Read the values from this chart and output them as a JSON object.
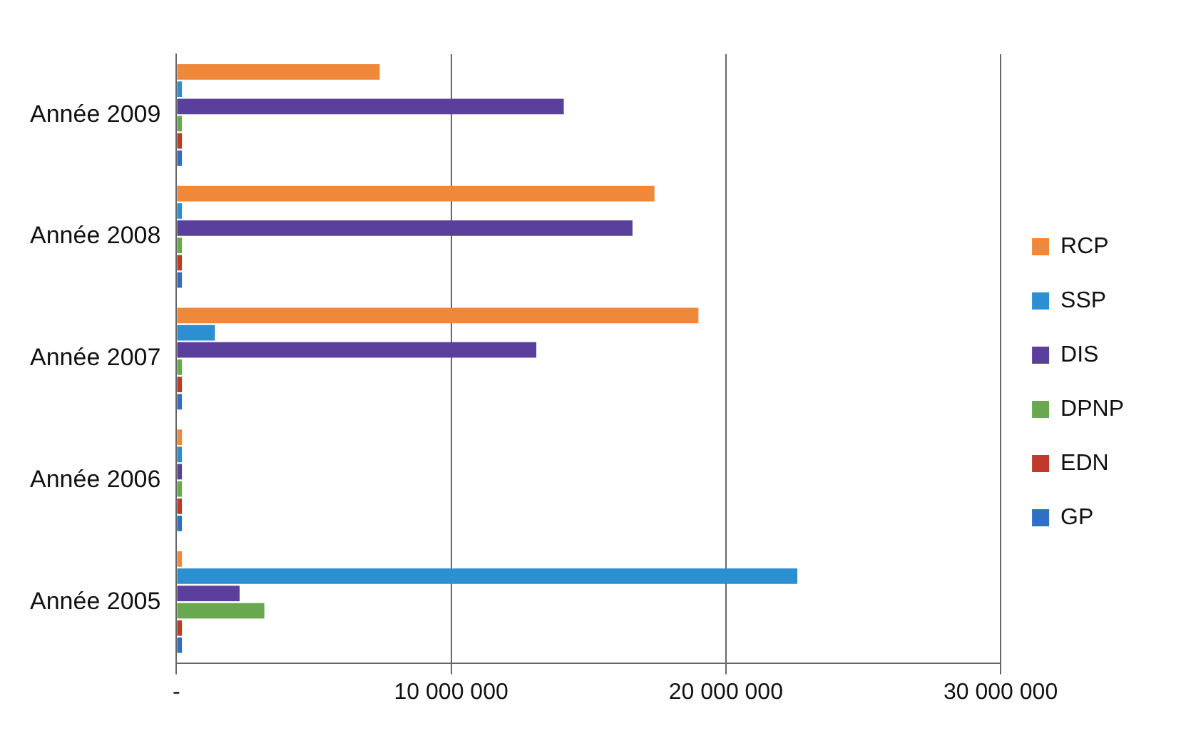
{
  "chart_data": {
    "type": "bar",
    "orientation": "horizontal",
    "categories": [
      "Année 2009",
      "Année 2008",
      "Année 2007",
      "Année 2006",
      "Année 2005"
    ],
    "series": [
      {
        "name": "RCP",
        "color": "#f0883a",
        "values": [
          7400000,
          17400000,
          19000000,
          200000,
          200000
        ]
      },
      {
        "name": "SSP",
        "color": "#2b8fd1",
        "values": [
          200000,
          200000,
          1400000,
          200000,
          22600000
        ]
      },
      {
        "name": "DIS",
        "color": "#5b3f9c",
        "values": [
          14100000,
          16600000,
          13100000,
          200000,
          2300000
        ]
      },
      {
        "name": "DPNP",
        "color": "#6aa84f",
        "values": [
          200000,
          200000,
          200000,
          200000,
          3200000
        ]
      },
      {
        "name": "EDN",
        "color": "#c0392b",
        "values": [
          200000,
          200000,
          200000,
          200000,
          200000
        ]
      },
      {
        "name": "GP",
        "color": "#2f6fc4",
        "values": [
          200000,
          200000,
          200000,
          200000,
          200000
        ]
      }
    ],
    "xlim": [
      0,
      30000000
    ],
    "xticks": [
      {
        "value": 0,
        "label": "-"
      },
      {
        "value": 10000000,
        "label": "10 000 000"
      },
      {
        "value": 20000000,
        "label": "20 000 000"
      },
      {
        "value": 30000000,
        "label": "30 000 000"
      }
    ],
    "grid": "x",
    "legend": "right"
  }
}
